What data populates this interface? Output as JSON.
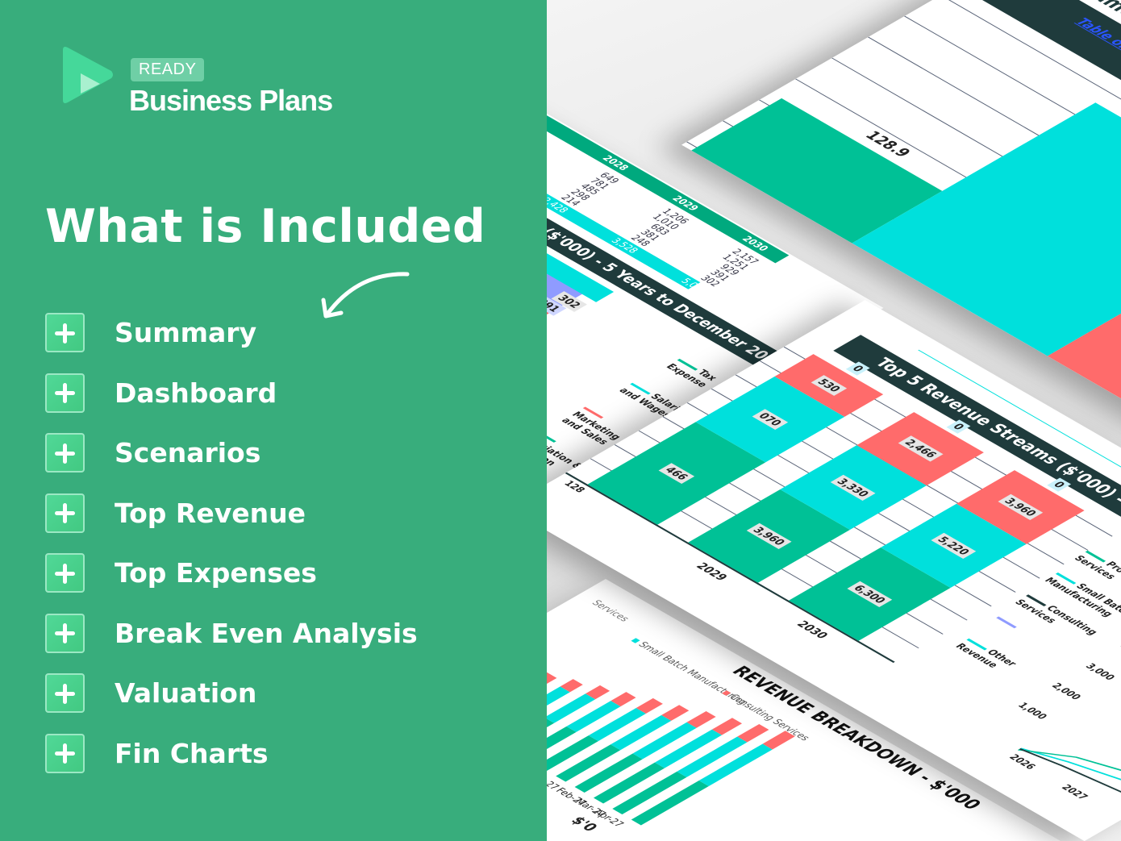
{
  "brand": {
    "badge": "READY",
    "name": "Business Plans",
    "colors": {
      "play_main": "#45d89a",
      "play_inner": "#a9f0cf",
      "background": "#38ad7c"
    }
  },
  "heading": "What is Included",
  "items": [
    {
      "label": "Summary",
      "icon": "plus-icon"
    },
    {
      "label": "Dashboard",
      "icon": "plus-icon"
    },
    {
      "label": "Scenarios",
      "icon": "plus-icon"
    },
    {
      "label": "Top Revenue",
      "icon": "plus-icon"
    },
    {
      "label": "Top Expenses",
      "icon": "plus-icon"
    },
    {
      "label": "Break Even Analysis",
      "icon": "plus-icon"
    },
    {
      "label": "Valuation",
      "icon": "plus-icon"
    },
    {
      "label": "Fin Charts",
      "icon": "plus-icon"
    }
  ],
  "palette": {
    "green": "#00c196",
    "cyan": "#00e0dc",
    "red": "#ff6b6b",
    "dark": "#1f3b3c",
    "violet": "#8f9bff"
  },
  "preview": {
    "toc": {
      "partial_title": "ame",
      "link": "Table of Content"
    },
    "big_chart": {
      "label": "128.9"
    },
    "expense_table": {
      "partial_first": "31",
      "years": [
        "2028",
        "2029",
        "2030"
      ],
      "values": [
        [
          "649",
          "781",
          "485",
          "298",
          "214"
        ],
        [
          "1,206",
          "1,010",
          "683",
          "381",
          "248"
        ],
        [
          "2,157",
          "1,251",
          "929",
          "391",
          "302"
        ]
      ],
      "totals": [
        "2,428",
        "3,528",
        "5,030"
      ],
      "title": "gories ($'000) - 5 Years to December 2030",
      "labels": [
        "302",
        "391",
        "029"
      ],
      "legend": [
        "Tax Expense",
        "Salaries and Wages",
        "Marketing and Sales",
        "preciation & rtization",
        "es"
      ]
    },
    "top_revenue": {
      "title": "Top 5 Revenue Streams ($'000) - 5 Years",
      "axis_label": "128",
      "columns": [
        {
          "year": "",
          "labels": [
            "466",
            "070",
            "530",
            "0"
          ],
          "values": [
            1466,
            1070,
            530,
            0
          ]
        },
        {
          "year": "2029",
          "labels": [
            "3,960",
            "3,330",
            "2,466",
            "0"
          ],
          "values": [
            3960,
            3330,
            2466,
            0
          ]
        },
        {
          "year": "2030",
          "labels": [
            "6,300",
            "5,220",
            "3,960",
            "0"
          ],
          "values": [
            6300,
            5220,
            3960,
            0
          ]
        }
      ],
      "legend": [
        "Prototyping Services",
        "Small Batch Manufacturing",
        "Consulting Services",
        "",
        "Other Revenue"
      ],
      "line_axis": {
        "ticks": [
          "4,",
          "3,000",
          "2,000",
          "1,000"
        ],
        "years": [
          "2026",
          "2027"
        ]
      }
    },
    "revenue_breakdown": {
      "title": "REVENUE BREAKDOWN - $'000",
      "legend": [
        "Small Batch Manufacturing",
        "Consulting Services"
      ],
      "partial_legend": "Services",
      "months": [
        "n-27",
        "Feb-27",
        "Mar-27",
        "Apr-27"
      ],
      "partial_axis": "$'0"
    }
  }
}
